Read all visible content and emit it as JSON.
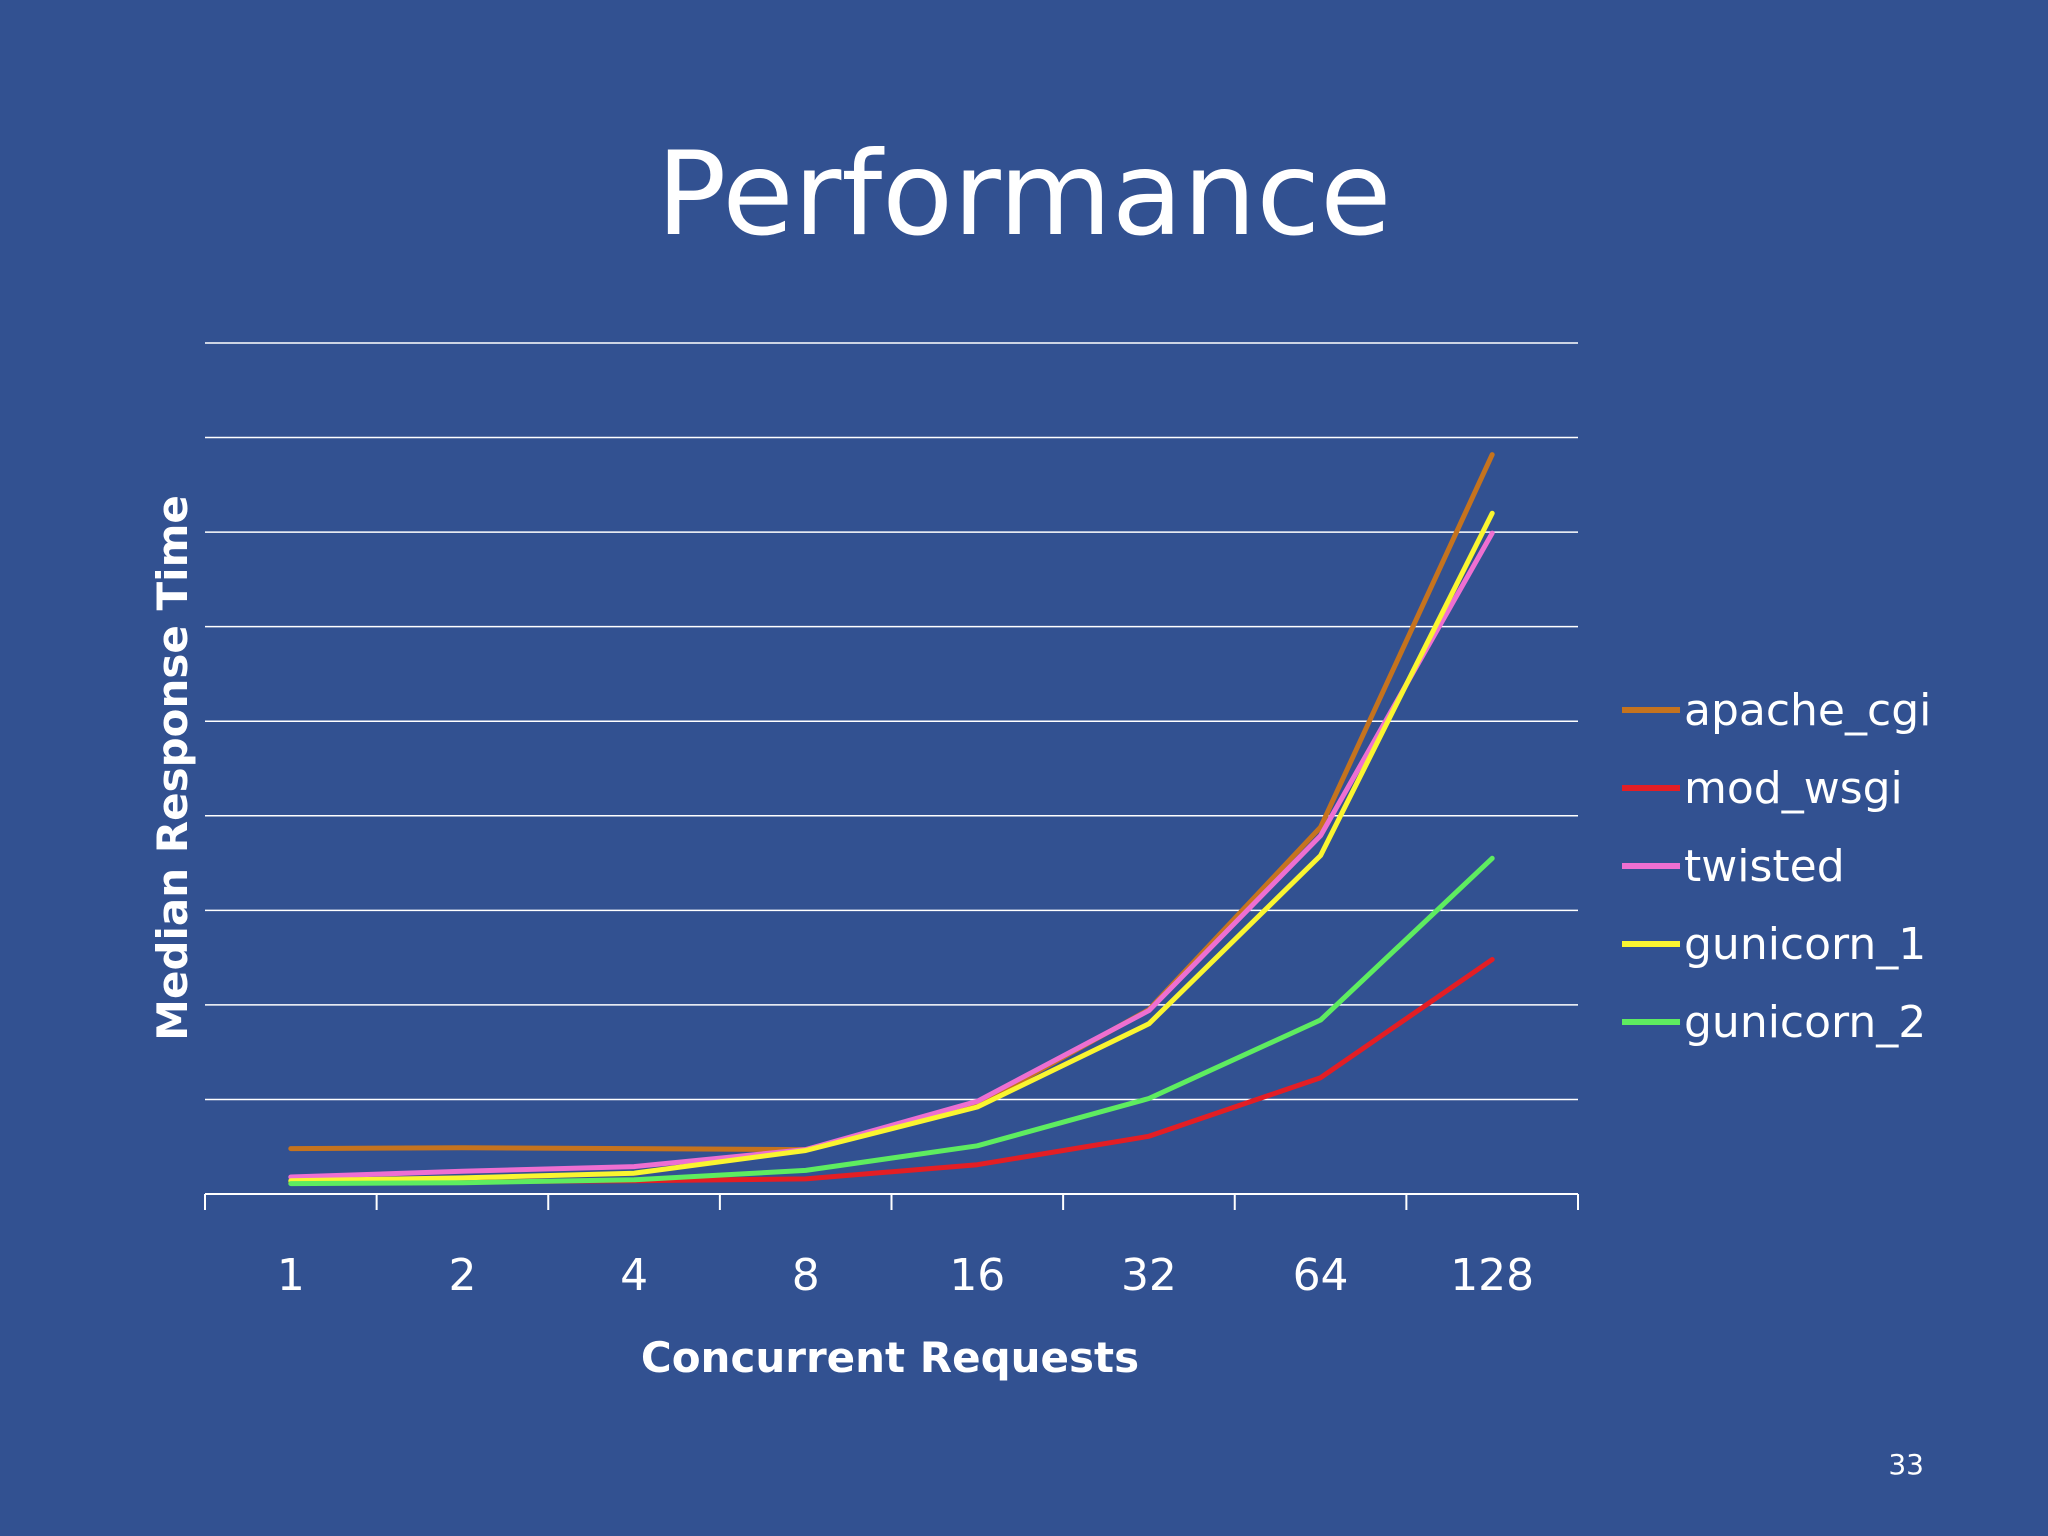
{
  "slide": {
    "title": "Performance",
    "page_number": "33"
  },
  "colors": {
    "background": "#325191",
    "gridline": "#ffffff",
    "text": "#ffffff"
  },
  "chart_data": {
    "type": "line",
    "title": "",
    "xlabel": "Concurrent Requests",
    "ylabel": "Median Response Time",
    "categories": [
      "1",
      "2",
      "4",
      "8",
      "16",
      "32",
      "64",
      "128"
    ],
    "ylim": [
      0,
      9
    ],
    "y_ticks_labeled": false,
    "grid": true,
    "legend_position": "right",
    "series": [
      {
        "name": "apache_cgi",
        "color": "#C5731E",
        "values": [
          0.48,
          0.49,
          0.48,
          0.47,
          0.94,
          1.95,
          3.88,
          7.82
        ]
      },
      {
        "name": "mod_wsgi",
        "color": "#E31E24",
        "values": [
          0.12,
          0.13,
          0.14,
          0.16,
          0.31,
          0.61,
          1.23,
          2.48
        ]
      },
      {
        "name": "twisted",
        "color": "#EE6FD1",
        "values": [
          0.18,
          0.24,
          0.29,
          0.47,
          0.98,
          1.94,
          3.79,
          6.99
        ]
      },
      {
        "name": "gunicorn_1",
        "color": "#FAF530",
        "values": [
          0.14,
          0.17,
          0.22,
          0.46,
          0.92,
          1.8,
          3.58,
          7.2
        ]
      },
      {
        "name": "gunicorn_2",
        "color": "#5EEC60",
        "values": [
          0.11,
          0.12,
          0.15,
          0.25,
          0.51,
          1.01,
          1.84,
          3.55
        ]
      }
    ]
  }
}
